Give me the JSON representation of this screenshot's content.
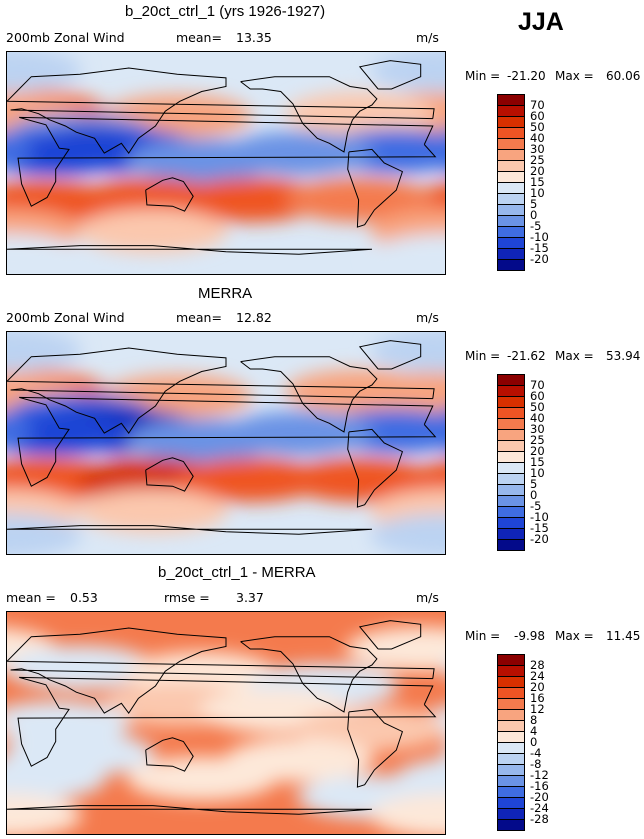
{
  "season": "JJA",
  "chart_data": [
    {
      "type": "heatmap",
      "title": "b_20ct_ctrl_1 (yrs 1926-1927)",
      "field": "200mb Zonal Wind",
      "mean_label": "mean=",
      "mean": "13.35",
      "units": "m/s",
      "min_label": "Min =",
      "min": "-21.20",
      "max_label": "Max =",
      "max": "60.06",
      "colorbar_labels": [
        "70",
        "60",
        "50",
        "40",
        "30",
        "25",
        "20",
        "15",
        "10",
        "5",
        "0",
        "-5",
        "-10",
        "-15",
        "-20"
      ],
      "colorbar_colors": [
        "#8b0000",
        "#b70f00",
        "#d83000",
        "#ef5424",
        "#f47a4d",
        "#f8a47f",
        "#fbc8ae",
        "#fde8d9",
        "#dbe8f6",
        "#bcd3f2",
        "#97b7ec",
        "#6b93e5",
        "#3f6de2",
        "#1f45d6",
        "#0f24b8",
        "#030a8a"
      ],
      "regions": [
        {
          "lat": 42,
          "lon": 20,
          "v": 30
        },
        {
          "lat": 40,
          "lon": -5,
          "v": 28
        },
        {
          "lat": 38,
          "lon": 140,
          "v": 27
        },
        {
          "lat": 40,
          "lon": -70,
          "v": 22
        },
        {
          "lat": 22,
          "lon": 60,
          "v": -5
        },
        {
          "lat": 12,
          "lon": 75,
          "v": -18
        },
        {
          "lat": 10,
          "lon": 100,
          "v": -15
        },
        {
          "lat": 8,
          "lon": 40,
          "v": -12
        },
        {
          "lat": 10,
          "lon": -40,
          "v": -8
        },
        {
          "lat": 8,
          "lon": -120,
          "v": -5
        },
        {
          "lat": 2,
          "lon": 160,
          "v": -2
        },
        {
          "lat": -32,
          "lon": 30,
          "v": 40
        },
        {
          "lat": -30,
          "lon": 120,
          "v": 48
        },
        {
          "lat": -30,
          "lon": -160,
          "v": 45
        },
        {
          "lat": -30,
          "lon": -70,
          "v": 38
        },
        {
          "lat": -55,
          "lon": 0,
          "v": 25
        },
        {
          "lat": -55,
          "lon": 120,
          "v": 22
        },
        {
          "lat": -75,
          "lon": 0,
          "v": 10
        },
        {
          "lat": 75,
          "lon": 0,
          "v": 5
        }
      ]
    },
    {
      "type": "heatmap",
      "title": "MERRA",
      "field": "200mb Zonal Wind",
      "mean_label": "mean=",
      "mean": "12.82",
      "units": "m/s",
      "min_label": "Min =",
      "min": "-21.62",
      "max_label": "Max =",
      "max": "53.94",
      "colorbar_labels": [
        "70",
        "60",
        "50",
        "40",
        "30",
        "25",
        "20",
        "15",
        "10",
        "5",
        "0",
        "-5",
        "-10",
        "-15",
        "-20"
      ],
      "colorbar_colors": [
        "#8b0000",
        "#b70f00",
        "#d83000",
        "#ef5424",
        "#f47a4d",
        "#f8a47f",
        "#fbc8ae",
        "#fde8d9",
        "#dbe8f6",
        "#bcd3f2",
        "#97b7ec",
        "#6b93e5",
        "#3f6de2",
        "#1f45d6",
        "#0f24b8",
        "#030a8a"
      ],
      "regions": [
        {
          "lat": 42,
          "lon": 20,
          "v": 32
        },
        {
          "lat": 40,
          "lon": -5,
          "v": 25
        },
        {
          "lat": 38,
          "lon": 140,
          "v": 28
        },
        {
          "lat": 42,
          "lon": -70,
          "v": 25
        },
        {
          "lat": 22,
          "lon": 60,
          "v": -8
        },
        {
          "lat": 12,
          "lon": 75,
          "v": -20
        },
        {
          "lat": 10,
          "lon": 100,
          "v": -18
        },
        {
          "lat": 8,
          "lon": 40,
          "v": -14
        },
        {
          "lat": 10,
          "lon": -40,
          "v": -6
        },
        {
          "lat": 8,
          "lon": -120,
          "v": -4
        },
        {
          "lat": 2,
          "lon": 160,
          "v": -3
        },
        {
          "lat": -30,
          "lon": 30,
          "v": 42
        },
        {
          "lat": -30,
          "lon": 120,
          "v": 50
        },
        {
          "lat": -30,
          "lon": -160,
          "v": 42
        },
        {
          "lat": -30,
          "lon": -70,
          "v": 40
        },
        {
          "lat": -55,
          "lon": 0,
          "v": 24
        },
        {
          "lat": -55,
          "lon": 120,
          "v": 22
        },
        {
          "lat": -75,
          "lon": 0,
          "v": 8
        },
        {
          "lat": 75,
          "lon": 0,
          "v": 5
        }
      ]
    },
    {
      "type": "heatmap",
      "title": "b_20ct_ctrl_1 - MERRA",
      "mean_label": "mean =",
      "mean": "0.53",
      "rmse_label": "rmse =",
      "rmse": "3.37",
      "units": "m/s",
      "min_label": "Min =",
      "min": "-9.98",
      "max_label": "Max =",
      "max": "11.45",
      "colorbar_labels": [
        "28",
        "24",
        "20",
        "16",
        "12",
        "8",
        "4",
        "0",
        "-4",
        "-8",
        "-12",
        "-16",
        "-20",
        "-24",
        "-28"
      ],
      "colorbar_colors": [
        "#8b0000",
        "#b70f00",
        "#d83000",
        "#ef5424",
        "#f47a4d",
        "#f8a47f",
        "#fbc8ae",
        "#fde8d9",
        "#dbe8f6",
        "#bcd3f2",
        "#97b7ec",
        "#6b93e5",
        "#3f6de2",
        "#1f45d6",
        "#0f24b8",
        "#030a8a"
      ],
      "regions": [
        {
          "lat": 60,
          "lon": -20,
          "v": 2
        },
        {
          "lat": 45,
          "lon": 60,
          "v": -3
        },
        {
          "lat": 40,
          "lon": 160,
          "v": 3
        },
        {
          "lat": 30,
          "lon": -100,
          "v": -2
        },
        {
          "lat": 15,
          "lon": 140,
          "v": 4
        },
        {
          "lat": 10,
          "lon": -140,
          "v": 3
        },
        {
          "lat": 0,
          "lon": 40,
          "v": -3
        },
        {
          "lat": -5,
          "lon": -60,
          "v": 5
        },
        {
          "lat": -25,
          "lon": 60,
          "v": -4
        },
        {
          "lat": -30,
          "lon": -120,
          "v": 2
        },
        {
          "lat": -45,
          "lon": 20,
          "v": -4
        },
        {
          "lat": -45,
          "lon": 160,
          "v": 2
        },
        {
          "lat": -60,
          "lon": -60,
          "v": -3
        },
        {
          "lat": -75,
          "lon": 0,
          "v": 2
        }
      ]
    }
  ]
}
